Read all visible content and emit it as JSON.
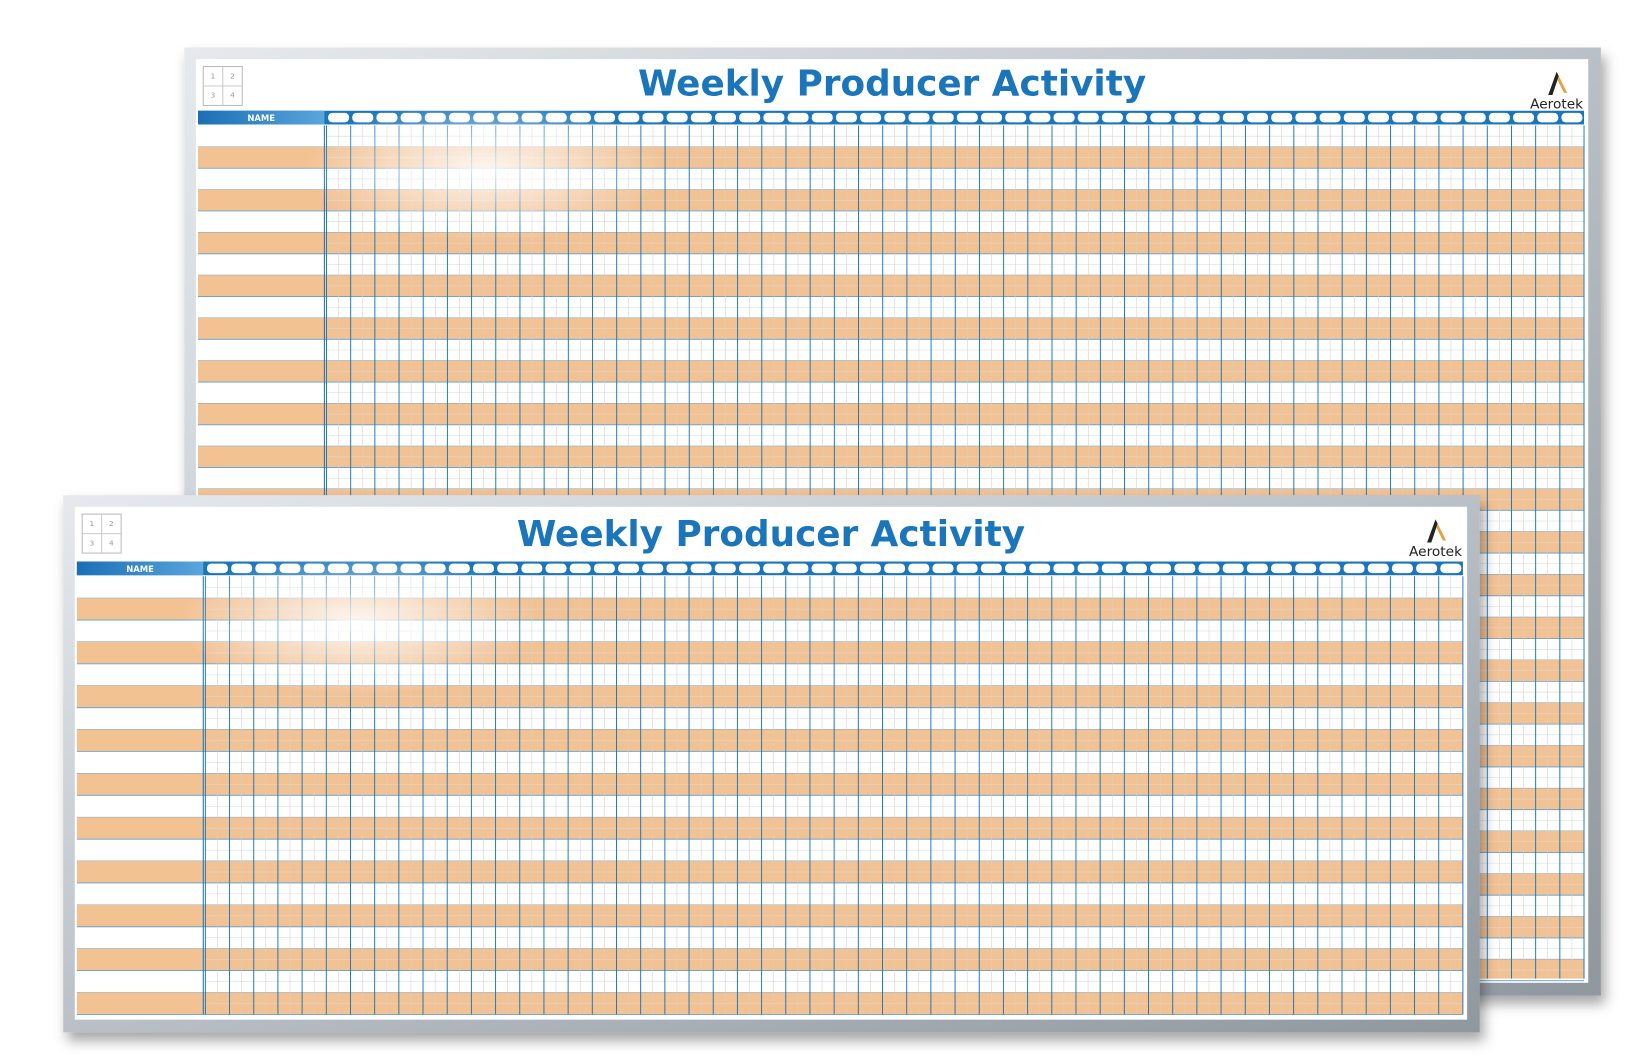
{
  "boards": [
    {
      "title": "Weekly Producer Activity",
      "logo": "Aerotek",
      "name_header": "NAME",
      "quadrants": [
        "1",
        "2",
        "3",
        "4"
      ]
    },
    {
      "title": "Weekly Producer Activity",
      "logo": "Aerotek",
      "name_header": "NAME",
      "quadrants": [
        "1",
        "2",
        "3",
        "4"
      ]
    }
  ]
}
